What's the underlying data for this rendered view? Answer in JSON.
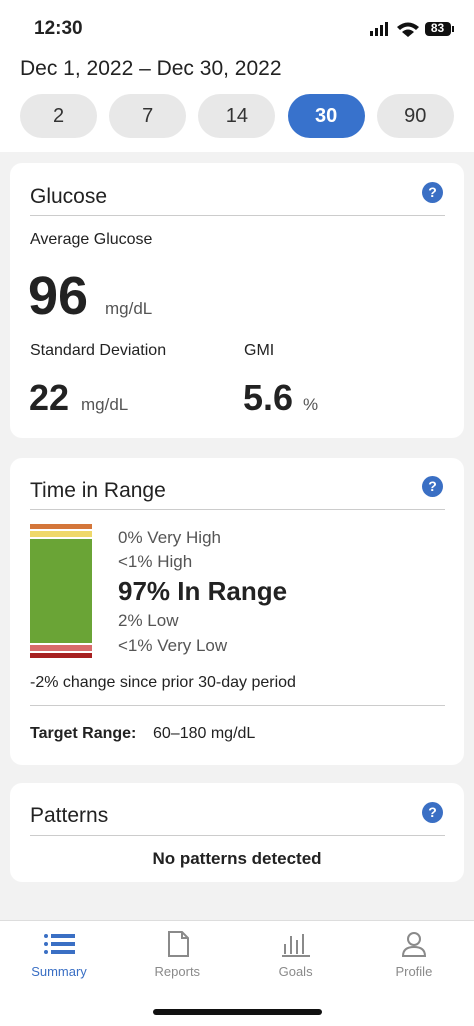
{
  "status_bar": {
    "time": "12:30",
    "battery": "83"
  },
  "date_range": "Dec 1, 2022 – Dec 30, 2022",
  "range_options": [
    "2",
    "7",
    "14",
    "30",
    "90"
  ],
  "selected_range": "30",
  "help_icon": "?",
  "glucose": {
    "title": "Glucose",
    "average_label": "Average Glucose",
    "average_value": "96",
    "average_unit": "mg/dL",
    "sd_label": "Standard Deviation",
    "sd_value": "22",
    "sd_unit": "mg/dL",
    "gmi_label": "GMI",
    "gmi_value": "5.6",
    "gmi_unit": "%"
  },
  "time_in_range": {
    "title": "Time in Range",
    "items": [
      "0% Very High",
      "<1% High",
      "97% In Range",
      "2% Low",
      "<1% Very Low"
    ],
    "change": "-2% change since prior 30-day period",
    "target_label": "Target Range:",
    "target_value": "60–180 mg/dL"
  },
  "patterns": {
    "title": "Patterns",
    "message": "No patterns detected"
  },
  "tabs": [
    "Summary",
    "Reports",
    "Goals",
    "Profile"
  ],
  "selected_tab": "Summary"
}
